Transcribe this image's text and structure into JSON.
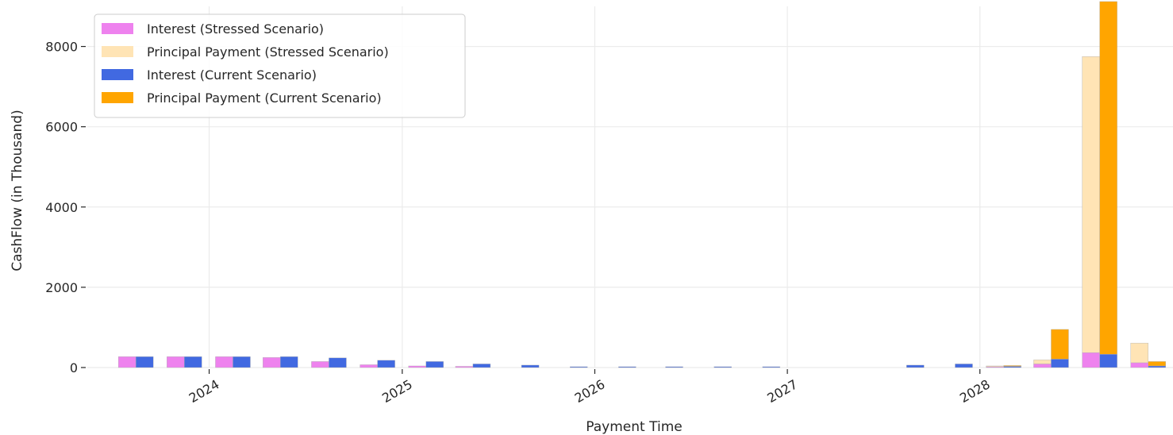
{
  "chart_data": {
    "type": "bar",
    "title": "",
    "xlabel": "Payment Time",
    "ylabel": "CashFlow (in Thousand)",
    "ylim": [
      0,
      9000
    ],
    "y_ticks": [
      "0",
      "2000",
      "4000",
      "6000",
      "8000"
    ],
    "x_tick_labels": [
      "2024",
      "2025",
      "2026",
      "2027",
      "2028"
    ],
    "x_axis": "date",
    "x_range": [
      "2023-06-01",
      "2028-12-31"
    ],
    "grid": true,
    "legend_position": "top-left",
    "stacked": true,
    "payment_dates": [
      "2023-08-15",
      "2023-11-15",
      "2024-02-15",
      "2024-05-15",
      "2024-08-15",
      "2024-11-15",
      "2025-02-15",
      "2025-05-15",
      "2025-08-15",
      "2025-11-15",
      "2026-02-15",
      "2026-05-15",
      "2026-08-15",
      "2026-11-15",
      "2027-02-15",
      "2027-05-15",
      "2027-08-15",
      "2027-11-15",
      "2028-02-15",
      "2028-05-15",
      "2028-08-15",
      "2028-11-15"
    ],
    "groups": [
      {
        "scenario": "Stressed Scenario",
        "series": [
          {
            "name": "Interest (Stressed Scenario)",
            "color": "#ee82ee",
            "values": [
              270,
              270,
              270,
              250,
              150,
              70,
              40,
              30,
              0,
              0,
              0,
              0,
              0,
              0,
              0,
              0,
              0,
              0,
              20,
              90,
              370,
              120
            ]
          },
          {
            "name": "Principal Payment (Stressed Scenario)",
            "color": "#ffe4b5",
            "values": [
              0,
              0,
              0,
              0,
              0,
              0,
              0,
              0,
              0,
              0,
              0,
              0,
              0,
              0,
              0,
              0,
              0,
              0,
              20,
              100,
              7380,
              490
            ]
          }
        ]
      },
      {
        "scenario": "Current Scenario",
        "series": [
          {
            "name": "Interest (Current Scenario)",
            "color": "#4169e1",
            "values": [
              270,
              270,
              270,
              270,
              240,
              180,
              150,
              90,
              60,
              20,
              20,
              20,
              20,
              20,
              0,
              0,
              60,
              90,
              30,
              210,
              330,
              40
            ]
          },
          {
            "name": "Principal Payment (Current Scenario)",
            "color": "#ffa500",
            "values": [
              0,
              0,
              0,
              0,
              0,
              0,
              0,
              0,
              0,
              0,
              0,
              0,
              0,
              0,
              0,
              0,
              0,
              0,
              20,
              740,
              8790,
              110
            ]
          }
        ]
      }
    ]
  }
}
